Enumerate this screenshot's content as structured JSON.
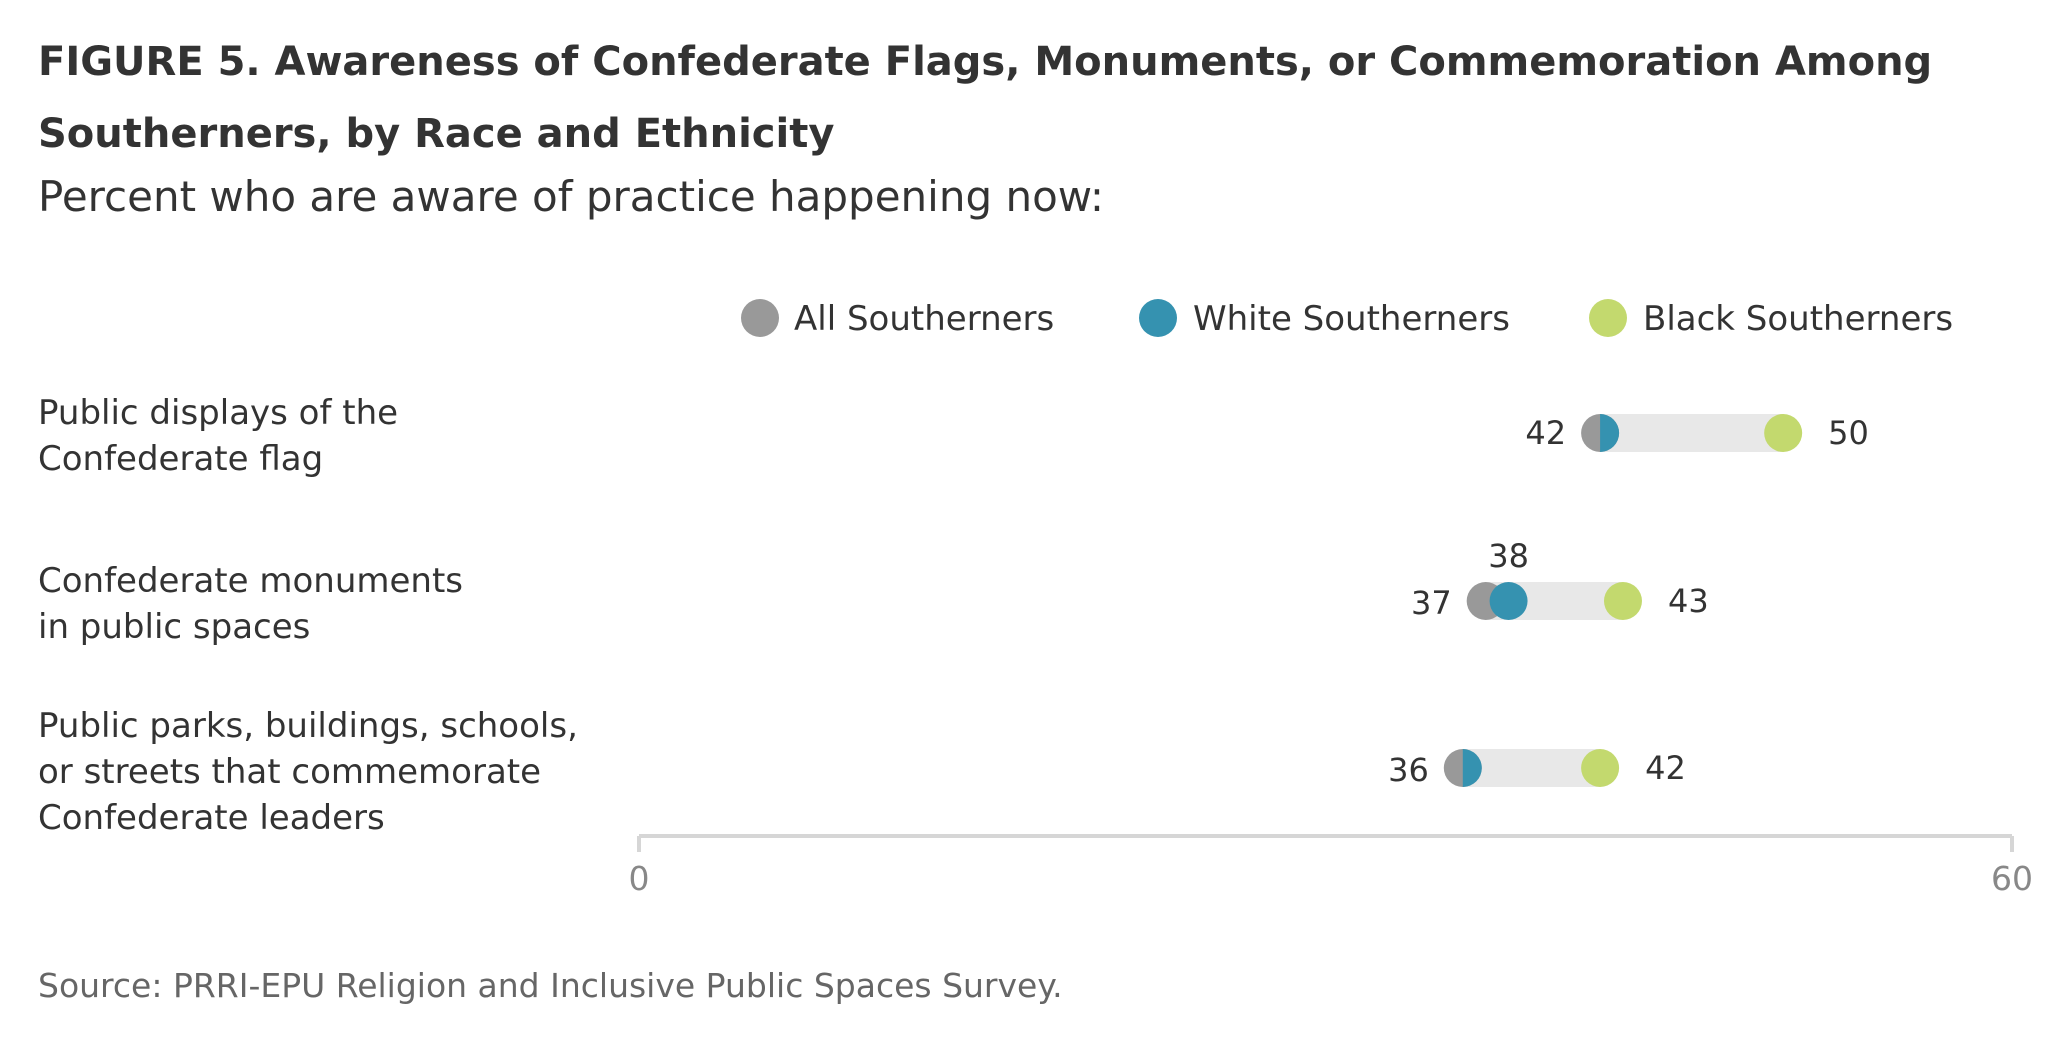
{
  "title": "FIGURE 5. Awareness of Confederate Flags, Monuments, or Commemoration Among Southerners, by Race and Ethnicity",
  "subtitle": "Percent who are aware of practice happening now:",
  "source": "Source: PRRI-EPU Religion and Inclusive Public Spaces Survey.",
  "colors": {
    "all": "#999999",
    "white": "#3592b0",
    "black": "#c3d96e",
    "track": "#e8e8e8",
    "axis": "#d6d6d6",
    "text": "#333333",
    "tick": "#888888"
  },
  "chart_data": {
    "type": "dot",
    "xlim": [
      0,
      60
    ],
    "x_ticks": [
      "0",
      "60"
    ],
    "legend_position": "top",
    "categories": [
      [
        "Public displays of the",
        "Confederate flag"
      ],
      [
        "Confederate monuments",
        "in public spaces"
      ],
      [
        "Public parks, buildings, schools,",
        "or streets that commemorate",
        "Confederate leaders"
      ]
    ],
    "series": [
      {
        "name": "All Southerners",
        "color_key": "all",
        "values": [
          42,
          37,
          36
        ],
        "labels": [
          "",
          "37",
          "36"
        ]
      },
      {
        "name": "White Southerners",
        "color_key": "white",
        "values": [
          42,
          38,
          36
        ],
        "labels": [
          "42",
          "38",
          ""
        ]
      },
      {
        "name": "Black Southerners",
        "color_key": "black",
        "values": [
          50,
          43,
          42
        ],
        "labels": [
          "50",
          "43",
          "42"
        ]
      }
    ]
  }
}
